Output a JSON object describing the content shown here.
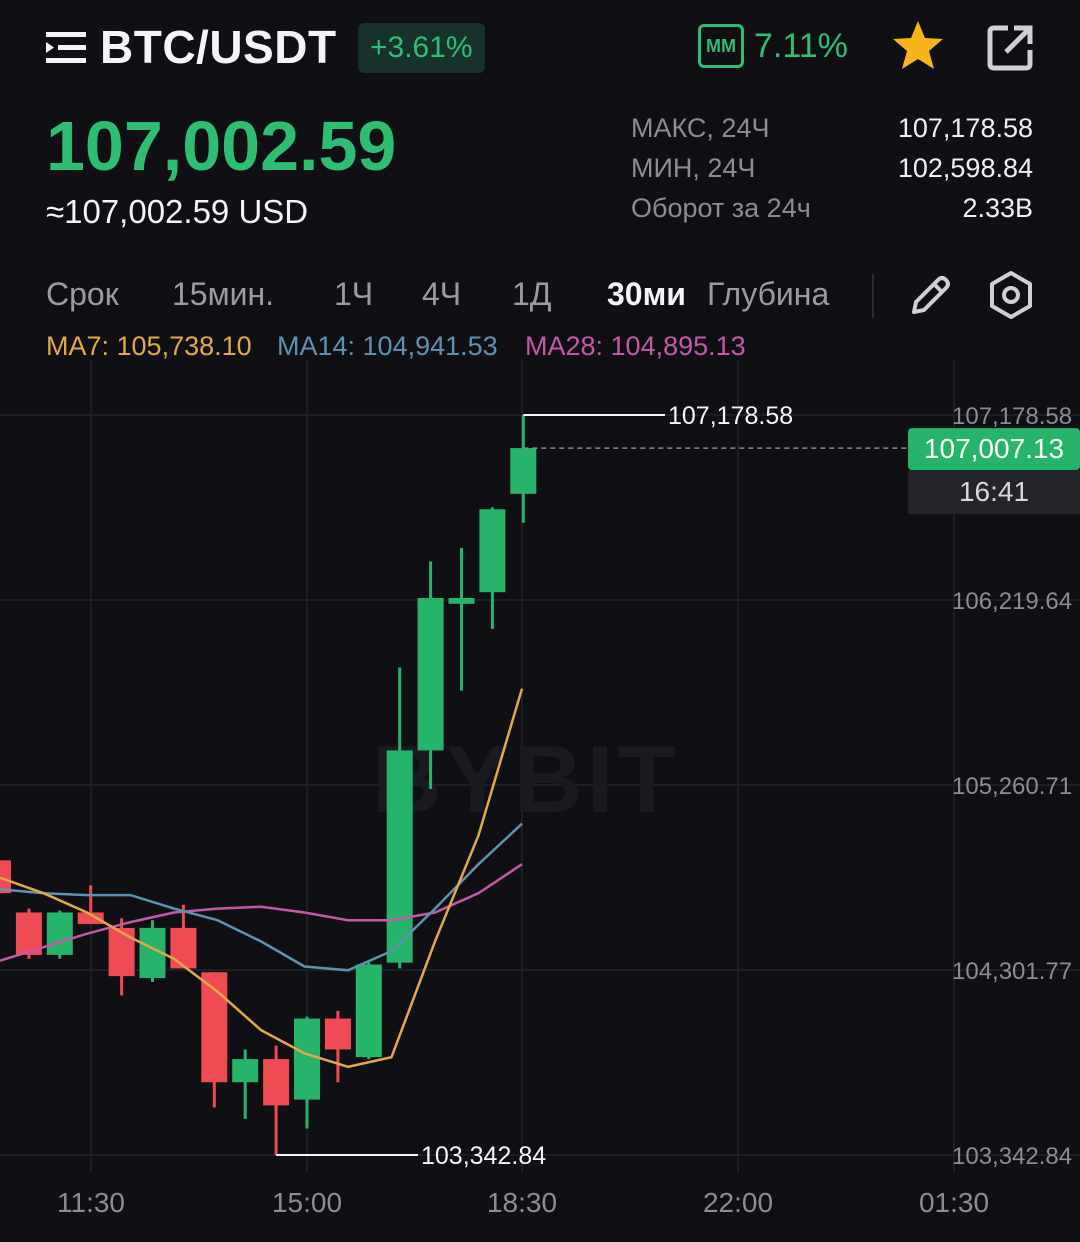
{
  "header": {
    "pair": "BTC/USDT",
    "change": "+3.61%",
    "mm_label": "MM",
    "mm_value": "7.11%",
    "icons": [
      "menu-icon",
      "star-icon",
      "share-icon"
    ]
  },
  "price": {
    "last": "107,002.59",
    "usd": "≈107,002.59 USD"
  },
  "stats": [
    {
      "label": "МАКС, 24Ч",
      "value": "107,178.58"
    },
    {
      "label": "МИН, 24Ч",
      "value": "102,598.84"
    },
    {
      "label": "Оборот за 24ч",
      "value": "2.33B"
    }
  ],
  "timeframes": [
    "Срок",
    "15мин.",
    "1Ч",
    "4Ч",
    "1Д",
    "30ми",
    "Глубина"
  ],
  "active_timeframe": "30ми",
  "ma": {
    "ma7": {
      "text": "MA7: 105,738.10",
      "color": "#e2a948"
    },
    "ma14": {
      "text": "MA14: 104,941.53",
      "color": "#5f91b3"
    },
    "ma28": {
      "text": "MA28: 104,895.13",
      "color": "#c558a8"
    }
  },
  "colors": {
    "up": "#26b46a",
    "down": "#ef4b55",
    "accent": "#2dbd73",
    "background": "#101014"
  },
  "chart_data": {
    "type": "candlestick",
    "watermark": "BYBIT",
    "y_ticks": [
      "107,178.58",
      "106,219.64",
      "105,260.71",
      "104,301.77",
      "103,342.84"
    ],
    "y_tick_values": [
      107178.58,
      106219.64,
      105260.71,
      104301.77,
      103342.84
    ],
    "x_ticks": [
      "11:30",
      "15:00",
      "18:30",
      "22:00",
      "01:30"
    ],
    "high_marker": "107,178.58",
    "low_marker": "103,342.84",
    "last_price_tag": "107,007.13",
    "countdown_tag": "16:41",
    "candles": [
      {
        "o": 104870,
        "h": 104870,
        "l": 104660,
        "c": 104700
      },
      {
        "o": 104600,
        "h": 104620,
        "l": 104360,
        "c": 104380
      },
      {
        "o": 104380,
        "h": 104610,
        "l": 104360,
        "c": 104600
      },
      {
        "o": 104600,
        "h": 104740,
        "l": 104540,
        "c": 104540
      },
      {
        "o": 104520,
        "h": 104570,
        "l": 104170,
        "c": 104270
      },
      {
        "o": 104260,
        "h": 104560,
        "l": 104240,
        "c": 104520
      },
      {
        "o": 104520,
        "h": 104640,
        "l": 104310,
        "c": 104310
      },
      {
        "o": 104290,
        "h": 104290,
        "l": 103590,
        "c": 103720
      },
      {
        "o": 103720,
        "h": 103890,
        "l": 103530,
        "c": 103840
      },
      {
        "o": 103840,
        "h": 103910,
        "l": 103343,
        "c": 103600
      },
      {
        "o": 103630,
        "h": 104060,
        "l": 103480,
        "c": 104050
      },
      {
        "o": 104050,
        "h": 104090,
        "l": 103720,
        "c": 103890
      },
      {
        "o": 103850,
        "h": 104340,
        "l": 103840,
        "c": 104330
      },
      {
        "o": 104340,
        "h": 105870,
        "l": 104310,
        "c": 105440
      },
      {
        "o": 105440,
        "h": 106420,
        "l": 105240,
        "c": 106230
      },
      {
        "o": 106200,
        "h": 106490,
        "l": 105750,
        "c": 106230
      },
      {
        "o": 106260,
        "h": 106700,
        "l": 106070,
        "c": 106690
      },
      {
        "o": 106770,
        "h": 107178.58,
        "l": 106620,
        "c": 107007.13
      }
    ],
    "ma7_line": [
      104780,
      104700,
      104600,
      104470,
      104360,
      104190,
      103990,
      103870,
      103800,
      103850,
      104450,
      105000,
      105760
    ],
    "ma14_line": [
      104720,
      104700,
      104690,
      104690,
      104620,
      104560,
      104450,
      104320,
      104300,
      104400,
      104620,
      104850,
      105060
    ],
    "ma28_line": [
      104350,
      104420,
      104490,
      104550,
      104600,
      104620,
      104630,
      104600,
      104560,
      104560,
      104600,
      104700,
      104850
    ]
  }
}
